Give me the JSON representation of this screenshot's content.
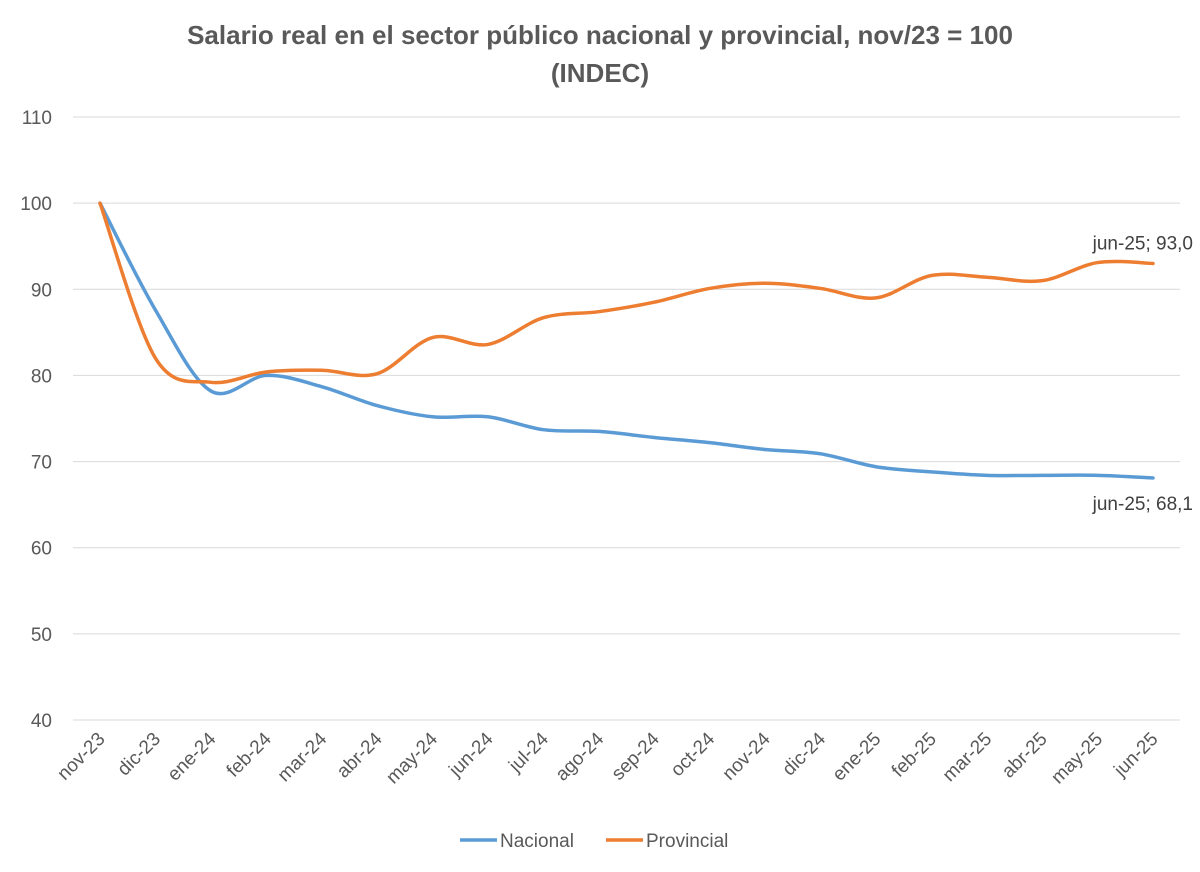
{
  "chart_data": {
    "type": "line",
    "title": "Salario real en el sector público nacional y provincial, nov/23 = 100",
    "subtitle": "(INDEC)",
    "xlabel": "",
    "ylabel": "",
    "ylim": [
      40,
      110
    ],
    "yticks": [
      40,
      50,
      60,
      70,
      80,
      90,
      100,
      110
    ],
    "grid": true,
    "legend_position": "bottom",
    "categories": [
      "nov-23",
      "dic-23",
      "ene-24",
      "feb-24",
      "mar-24",
      "abr-24",
      "may-24",
      "jun-24",
      "jul-24",
      "ago-24",
      "sep-24",
      "oct-24",
      "nov-24",
      "dic-24",
      "ene-25",
      "feb-25",
      "mar-25",
      "abr-25",
      "may-25",
      "jun-25"
    ],
    "series": [
      {
        "name": "Nacional",
        "color": "#5B9BD5",
        "values": [
          100,
          87.6,
          78.2,
          80.0,
          78.7,
          76.5,
          75.2,
          75.2,
          73.7,
          73.5,
          72.8,
          72.2,
          71.4,
          70.9,
          69.4,
          68.8,
          68.4,
          68.4,
          68.4,
          68.1
        ],
        "end_label": "jun-25; 68,1"
      },
      {
        "name": "Provincial",
        "color": "#ED7D31",
        "values": [
          100,
          82.0,
          79.2,
          80.4,
          80.6,
          80.2,
          84.4,
          83.6,
          86.7,
          87.4,
          88.5,
          90.1,
          90.7,
          90.1,
          89.0,
          91.6,
          91.4,
          91.0,
          93.1,
          93.0
        ],
        "end_label": "jun-25; 93,0"
      }
    ]
  }
}
